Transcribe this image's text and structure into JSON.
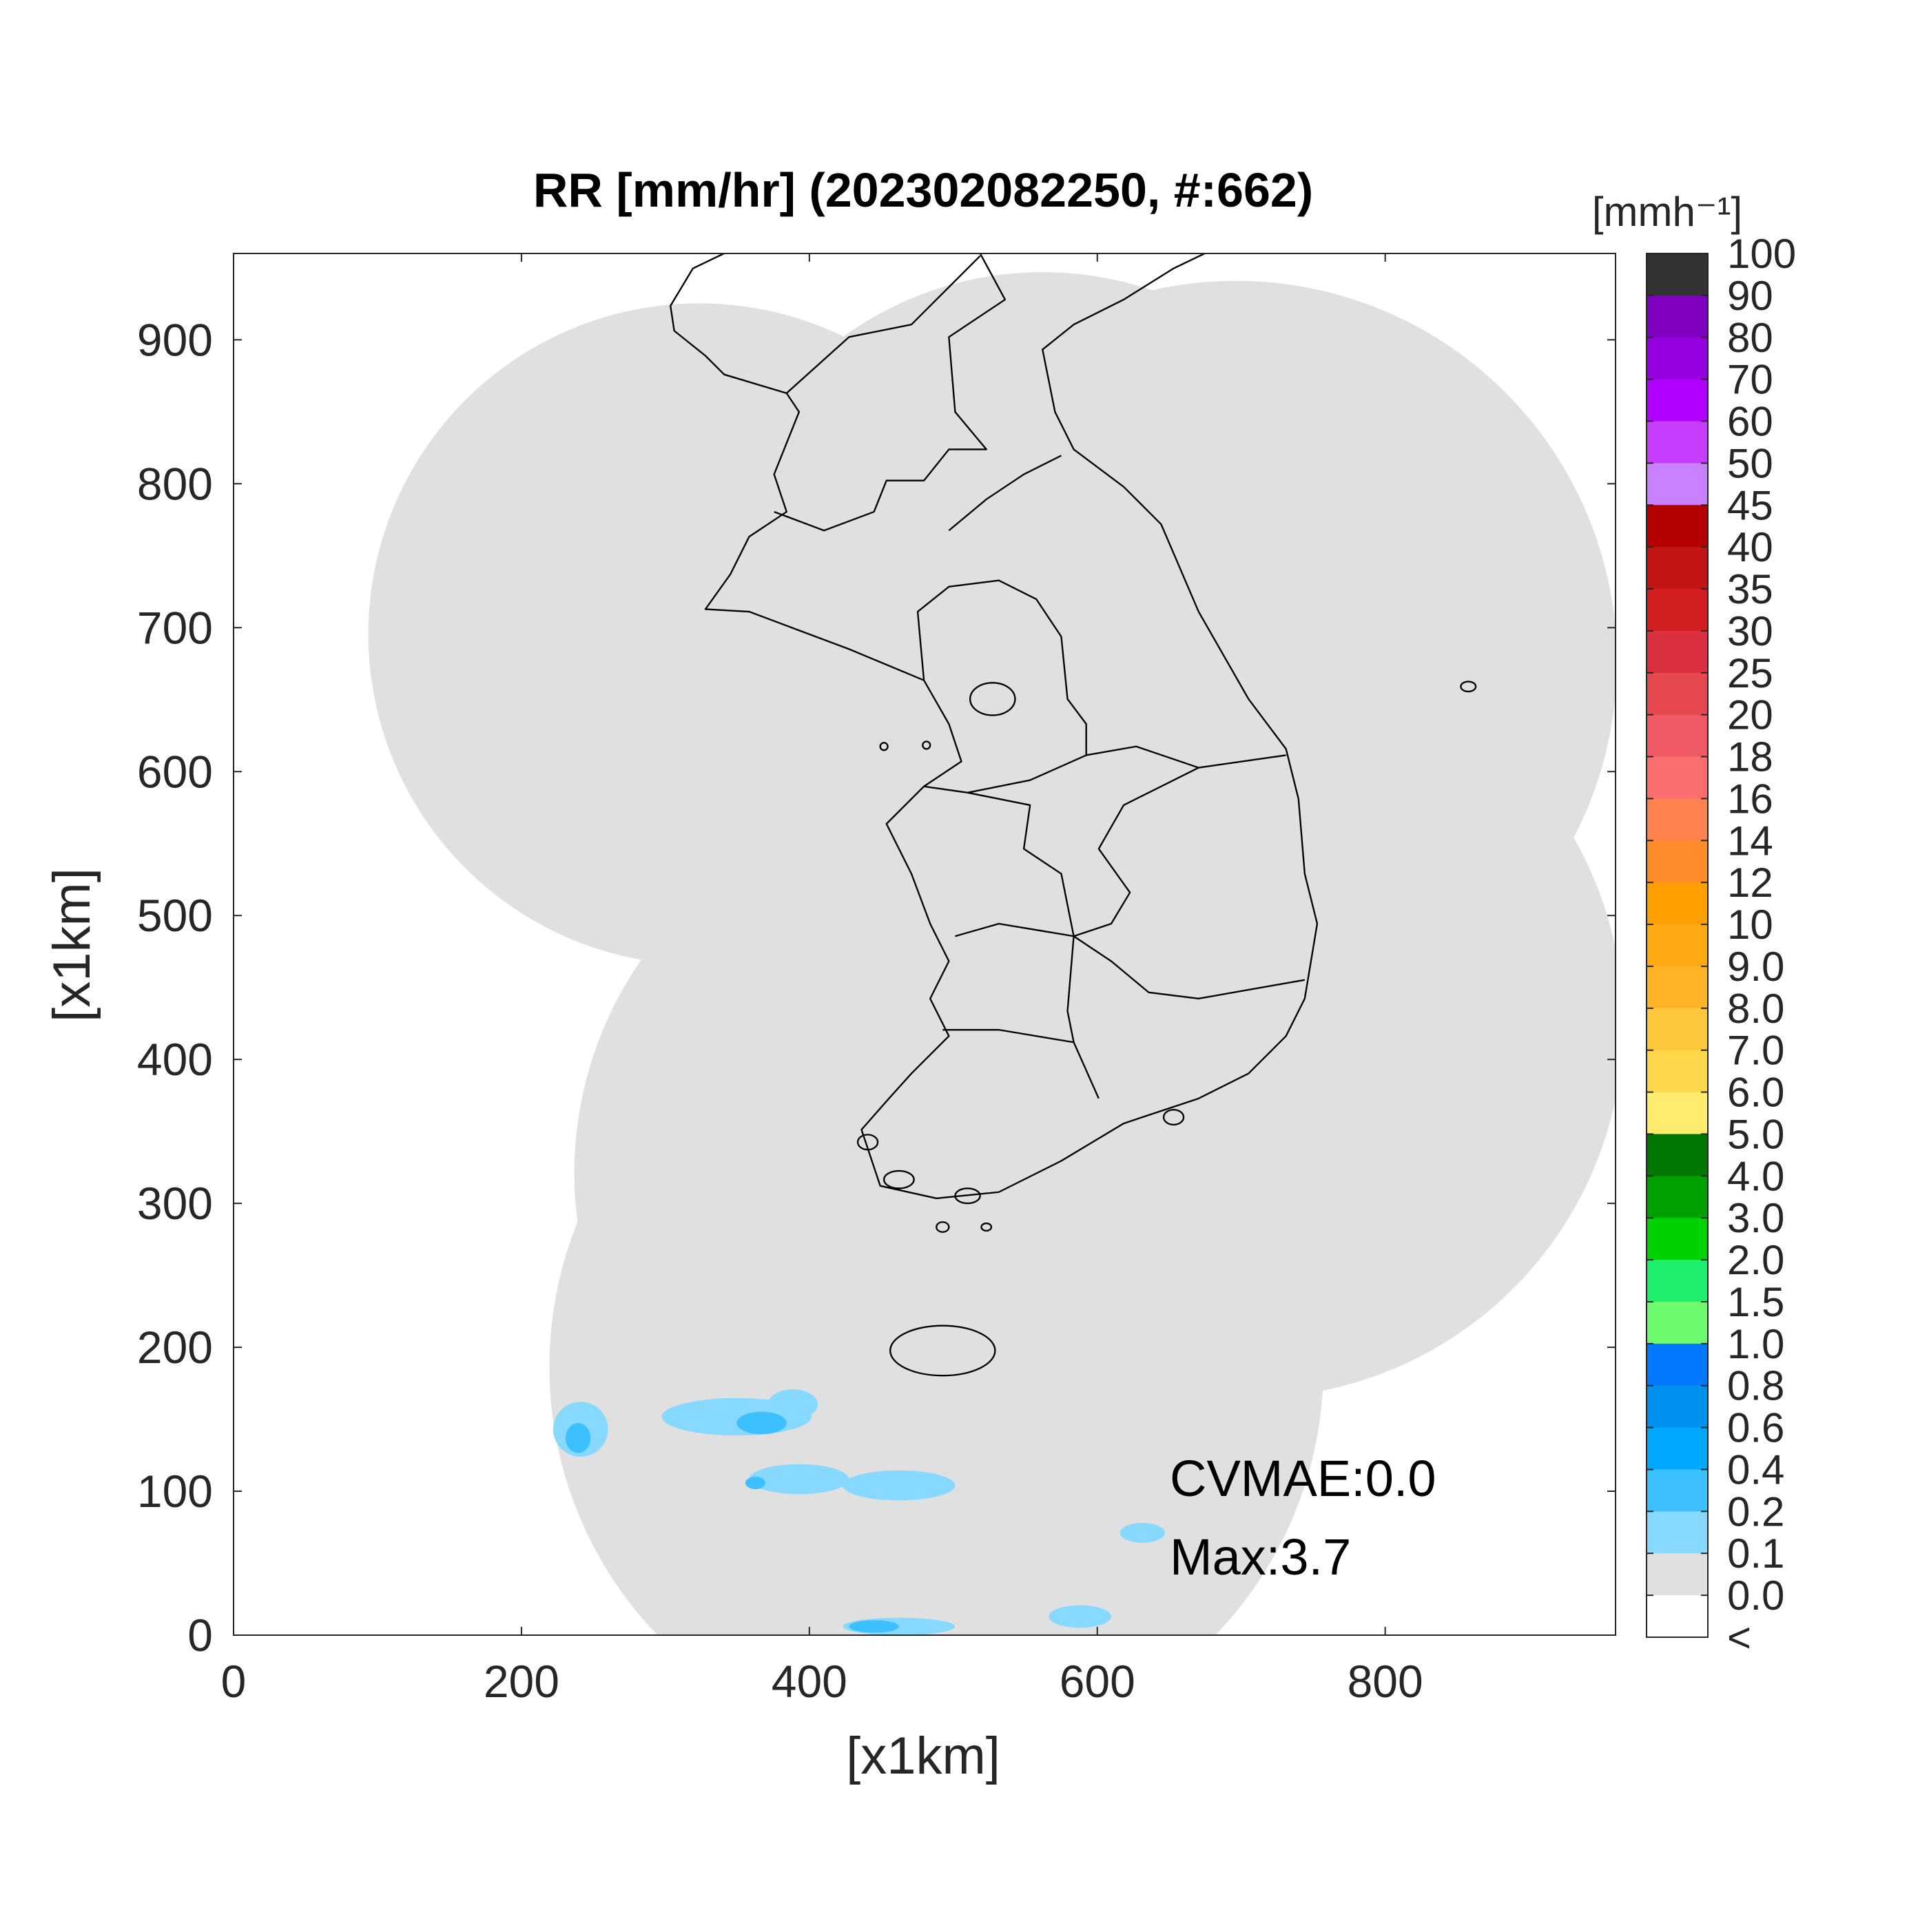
{
  "title": "RR [mm/hr] (202302082250, #:662)",
  "axes": {
    "xlabel": "[x1km]",
    "ylabel": "[x1km]",
    "xlim": [
      0,
      960
    ],
    "ylim": [
      0,
      960
    ],
    "xticks": [
      0,
      200,
      400,
      600,
      800
    ],
    "yticks": [
      0,
      100,
      200,
      300,
      400,
      500,
      600,
      700,
      800,
      900
    ]
  },
  "colorbar": {
    "unit": "[mmh⁻¹]",
    "labels": [
      "100",
      "90",
      "80",
      "70",
      "60",
      "50",
      "45",
      "40",
      "35",
      "30",
      "25",
      "20",
      "18",
      "16",
      "14",
      "12",
      "10",
      "9.0",
      "8.0",
      "7.0",
      "6.0",
      "5.0",
      "4.0",
      "3.0",
      "2.0",
      "1.5",
      "1.0",
      "0.8",
      "0.6",
      "0.4",
      "0.2",
      "0.1",
      "0.0",
      "<"
    ],
    "colors": [
      "#333333",
      "#7f00bf",
      "#9600e0",
      "#b000ff",
      "#c83cff",
      "#c882ff",
      "#b40000",
      "#c31414",
      "#d21e1e",
      "#da3040",
      "#e64850",
      "#f05a64",
      "#fa6e6e",
      "#ff8250",
      "#ff8c28",
      "#ffa000",
      "#ffaa14",
      "#ffb428",
      "#ffc83c",
      "#ffd74b",
      "#ffeb6e",
      "#007800",
      "#00a000",
      "#00d200",
      "#1ef06e",
      "#6efa6e",
      "#0078ff",
      "#0090f0",
      "#00a8ff",
      "#3cc0ff",
      "#87d9ff",
      "#e0e0e0",
      "#ffffff"
    ]
  },
  "annotations": [
    "CVMAE:0.0",
    "Max:3.7"
  ]
}
